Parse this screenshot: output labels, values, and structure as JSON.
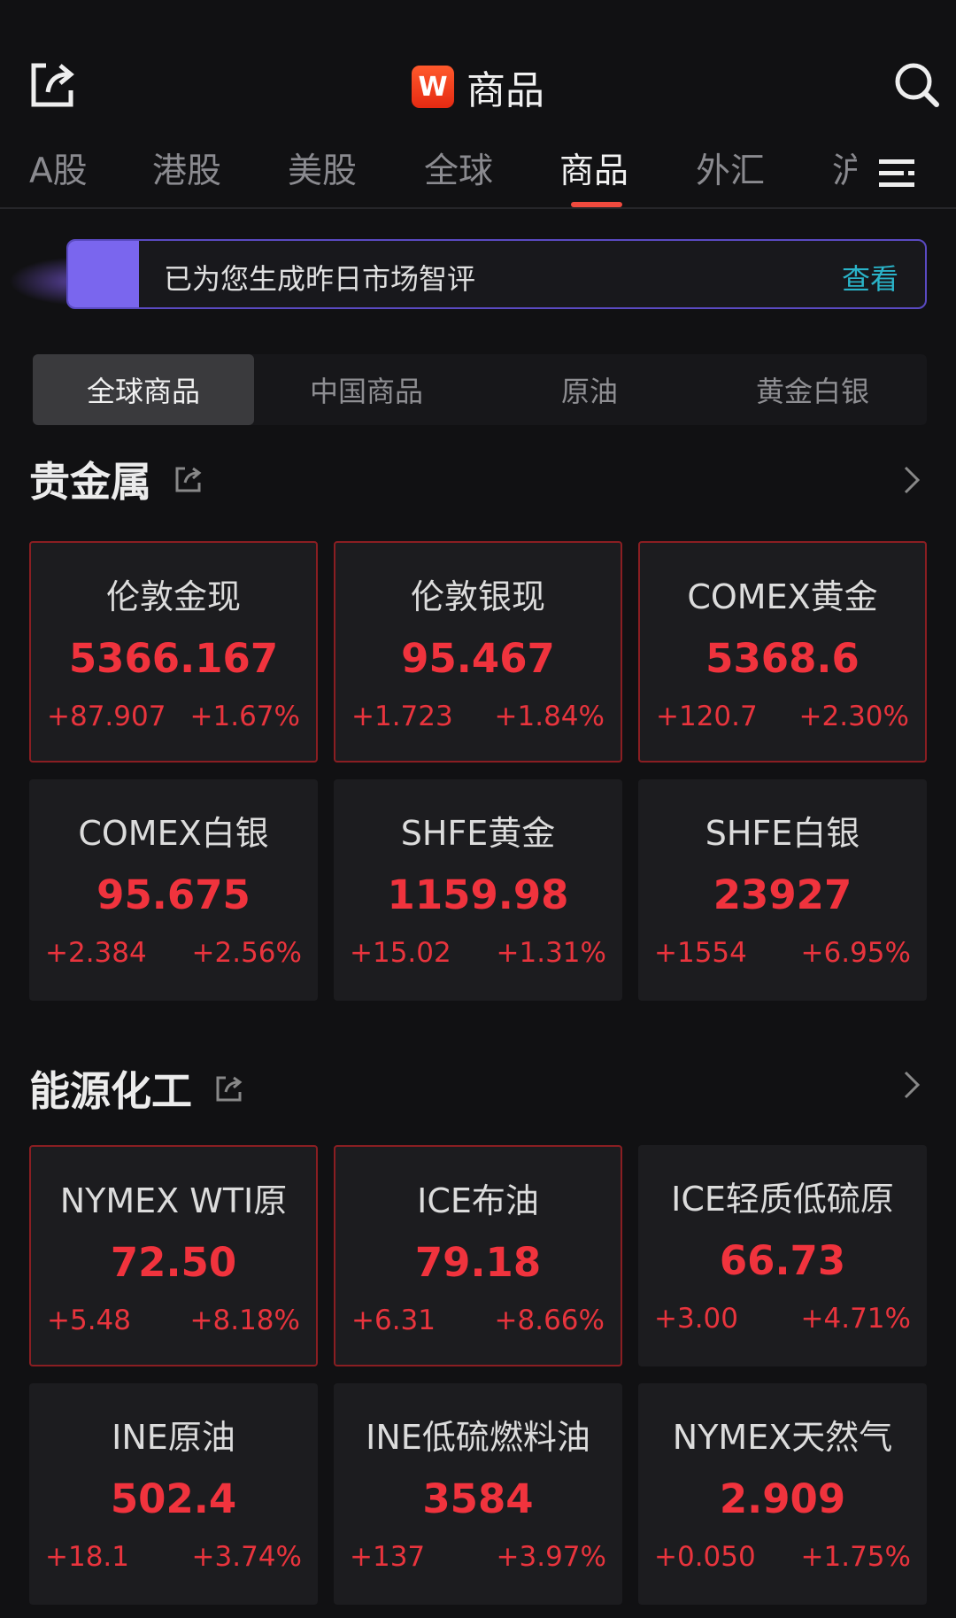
{
  "header": {
    "title": "商品",
    "logo_letter": "W",
    "share_icon": "share-icon",
    "search_icon": "search-icon"
  },
  "tabs": [
    {
      "label": "A股"
    },
    {
      "label": "港股"
    },
    {
      "label": "美股"
    },
    {
      "label": "全球"
    },
    {
      "label": "商品",
      "active": true
    },
    {
      "label": "外汇"
    },
    {
      "label": "沪"
    }
  ],
  "banner": {
    "text": "已为您生成昨日市场智评",
    "link": "查看"
  },
  "segments": [
    {
      "label": "全球商品",
      "active": true
    },
    {
      "label": "中国商品"
    },
    {
      "label": "原油"
    },
    {
      "label": "黄金白银"
    }
  ],
  "colors": {
    "up": "#f0333d",
    "accent_tab": "#f04a3e",
    "link": "#2ab3c8",
    "banner_accent": "#7a66ee"
  },
  "sections": [
    {
      "title": "贵金属",
      "items": [
        {
          "name": "伦敦金现",
          "price": "5366.167",
          "change": "+87.907",
          "pct": "+1.67%"
        },
        {
          "name": "伦敦银现",
          "price": "95.467",
          "change": "+1.723",
          "pct": "+1.84%"
        },
        {
          "name": "COMEX黄金",
          "price": "5368.6",
          "change": "+120.7",
          "pct": "+2.30%"
        },
        {
          "name": "COMEX白银",
          "price": "95.675",
          "change": "+2.384",
          "pct": "+2.56%"
        },
        {
          "name": "SHFE黄金",
          "price": "1159.98",
          "change": "+15.02",
          "pct": "+1.31%"
        },
        {
          "name": "SHFE白银",
          "price": "23927",
          "change": "+1554",
          "pct": "+6.95%"
        }
      ]
    },
    {
      "title": "能源化工",
      "items": [
        {
          "name": "NYMEX WTI原",
          "price": "72.50",
          "change": "+5.48",
          "pct": "+8.18%"
        },
        {
          "name": "ICE布油",
          "price": "79.18",
          "change": "+6.31",
          "pct": "+8.66%"
        },
        {
          "name": "ICE轻质低硫原",
          "price": "66.73",
          "change": "+3.00",
          "pct": "+4.71%"
        },
        {
          "name": "INE原油",
          "price": "502.4",
          "change": "+18.1",
          "pct": "+3.74%"
        },
        {
          "name": "INE低硫燃料油",
          "price": "3584",
          "change": "+137",
          "pct": "+3.97%"
        },
        {
          "name": "NYMEX天然气",
          "price": "2.909",
          "change": "+0.050",
          "pct": "+1.75%"
        }
      ]
    }
  ]
}
